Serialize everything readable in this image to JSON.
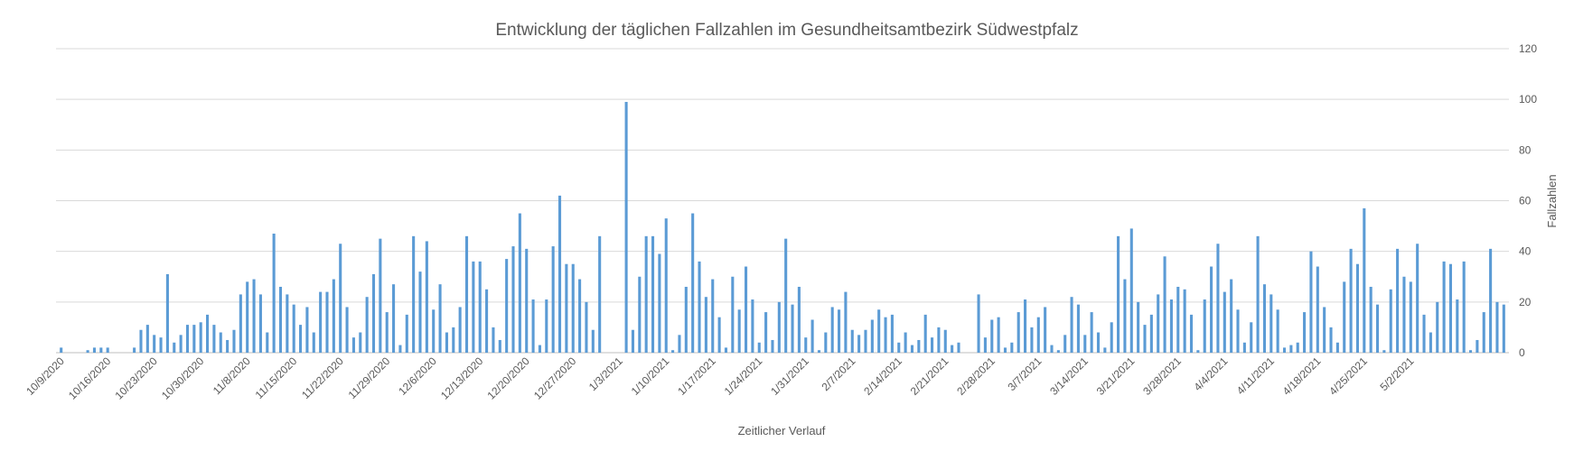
{
  "chart_data": {
    "type": "bar",
    "title": "Entwicklung der täglichen Fallzahlen im Gesundheitsamtbezirk Südwestpfalz",
    "xlabel": "Zeitlicher Verlauf",
    "ylabel": "Fallzahlen",
    "ylim": [
      0,
      120
    ],
    "yticks": [
      0,
      20,
      40,
      60,
      80,
      100,
      120
    ],
    "grid": true,
    "y_axis_side": "right",
    "bar_color": "#5B9BD5",
    "x_tick_labels": [
      "10/9/2020",
      "10/16/2020",
      "10/23/2020",
      "10/30/2020",
      "11/8/2020",
      "11/15/2020",
      "11/22/2020",
      "11/29/2020",
      "12/6/2020",
      "12/13/2020",
      "12/20/2020",
      "12/27/2020",
      "1/3/2021",
      "1/10/2021",
      "1/17/2021",
      "1/24/2021",
      "1/31/2021",
      "2/7/2021",
      "2/14/2021",
      "2/21/2021",
      "2/28/2021",
      "3/7/2021",
      "3/14/2021",
      "3/21/2021",
      "3/28/2021",
      "4/4/2021",
      "4/11/2021",
      "4/18/2021",
      "4/25/2021",
      "5/2/2021"
    ],
    "values": [
      2,
      0,
      0,
      0,
      1,
      2,
      2,
      2,
      0,
      0,
      0,
      2,
      9,
      11,
      7,
      6,
      31,
      4,
      7,
      11,
      11,
      12,
      15,
      11,
      8,
      5,
      9,
      23,
      28,
      29,
      23,
      8,
      47,
      26,
      23,
      19,
      11,
      18,
      8,
      24,
      24,
      29,
      43,
      18,
      6,
      8,
      22,
      31,
      45,
      16,
      27,
      3,
      15,
      46,
      32,
      44,
      17,
      27,
      8,
      10,
      18,
      46,
      36,
      36,
      25,
      10,
      5,
      37,
      42,
      55,
      41,
      21,
      3,
      21,
      42,
      62,
      35,
      35,
      29,
      20,
      9,
      46,
      0,
      0,
      0,
      99,
      9,
      30,
      46,
      46,
      39,
      53,
      1,
      7,
      26,
      55,
      36,
      22,
      29,
      14,
      2,
      30,
      17,
      34,
      21,
      4,
      16,
      5,
      20,
      45,
      19,
      26,
      6,
      13,
      1,
      8,
      18,
      17,
      24,
      9,
      7,
      9,
      13,
      17,
      14,
      15,
      4,
      8,
      3,
      5,
      15,
      6,
      10,
      9,
      3,
      4,
      0,
      0,
      23,
      6,
      13,
      14,
      2,
      4,
      16,
      21,
      10,
      14,
      18,
      3,
      1,
      7,
      22,
      19,
      7,
      16,
      8,
      2,
      12,
      46,
      29,
      49,
      20,
      11,
      15,
      23,
      38,
      21,
      26,
      25,
      15,
      1,
      21,
      34,
      43,
      24,
      29,
      17,
      4,
      12,
      46,
      27,
      23,
      17,
      2,
      3,
      4,
      16,
      40,
      34,
      18,
      10,
      4,
      28,
      41,
      35,
      57,
      26,
      19,
      1,
      25,
      41,
      30,
      28,
      43,
      15,
      8,
      20,
      36,
      35,
      21,
      36,
      1,
      5,
      16,
      41,
      20,
      19
    ]
  }
}
